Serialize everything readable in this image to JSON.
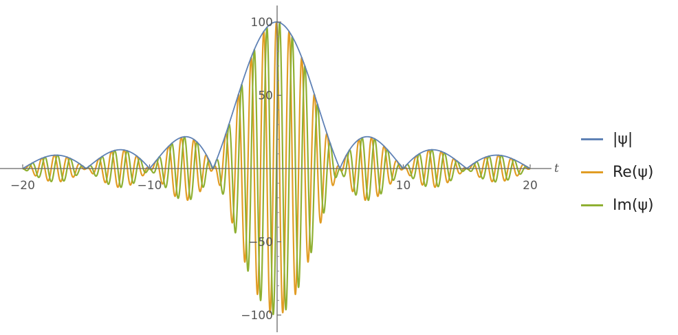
{
  "chart_data": {
    "type": "line",
    "title": "",
    "xlabel": "t",
    "ylabel": "",
    "xlim": [
      -20,
      20
    ],
    "ylim": [
      -100,
      100
    ],
    "x_ticks": [
      -20,
      -10,
      10,
      20
    ],
    "y_ticks": [
      100,
      50,
      -50,
      -100
    ],
    "x_tick_labels": [
      "-20",
      "-10",
      "10",
      "20"
    ],
    "y_tick_labels": [
      "100",
      "50",
      "-50",
      "-100"
    ],
    "grid": false,
    "legend_position": "right",
    "envelope": {
      "function": "100*|sin(pi*t/5)/(pi*t/5)|",
      "zero_crossings": [
        -20,
        -15,
        -10,
        -5,
        5,
        10,
        15,
        20
      ]
    },
    "oscillation_period": 1,
    "series": [
      {
        "name": "|ψ|",
        "color": "#5e81b5",
        "x": [
          -20,
          -17.5,
          -15,
          -12.5,
          -10,
          -7.5,
          -5,
          -2.5,
          0,
          2.5,
          5,
          7.5,
          10,
          12.5,
          15,
          17.5,
          20
        ],
        "values": [
          0,
          4.5,
          0,
          6.4,
          0,
          13,
          0,
          64,
          100,
          64,
          0,
          13,
          0,
          6.4,
          0,
          4.5,
          0
        ]
      },
      {
        "name": "Re(ψ)",
        "color": "#e19c24"
      },
      {
        "name": "Im(ψ)",
        "color": "#8fb032"
      }
    ]
  }
}
